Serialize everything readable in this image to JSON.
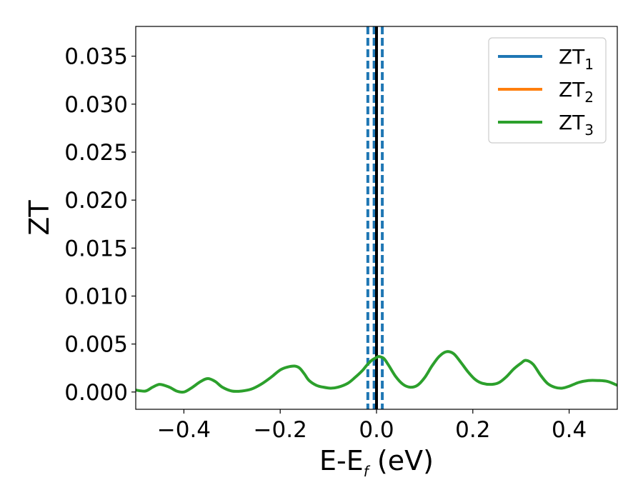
{
  "chart_data": {
    "type": "line",
    "xlabel": "E-E",
    "xlabel_sub": "f",
    "xlabel_unit": " (eV)",
    "ylabel": "ZT",
    "xlim": [
      -0.5,
      0.5
    ],
    "ylim": [
      -0.0018,
      0.0381
    ],
    "x_ticks": [
      -0.4,
      -0.2,
      0.0,
      0.2,
      0.4
    ],
    "x_tick_labels": [
      "−0.4",
      "−0.2",
      "0.0",
      "0.2",
      "0.4"
    ],
    "y_ticks": [
      0.0,
      0.005,
      0.01,
      0.015,
      0.02,
      0.025,
      0.03,
      0.035
    ],
    "y_tick_labels": [
      "0.000",
      "0.005",
      "0.010",
      "0.015",
      "0.020",
      "0.025",
      "0.030",
      "0.035"
    ],
    "legend_position": "top-right",
    "legend": [
      {
        "label": "ZT",
        "sub": "1",
        "color": "#1f77b4"
      },
      {
        "label": "ZT",
        "sub": "2",
        "color": "#ff7f0e"
      },
      {
        "label": "ZT",
        "sub": "3",
        "color": "#2ca02c"
      }
    ],
    "series": [
      {
        "color": "#2ca02c",
        "x": [
          -0.5,
          -0.48,
          -0.465,
          -0.45,
          -0.43,
          -0.415,
          -0.4,
          -0.385,
          -0.365,
          -0.35,
          -0.335,
          -0.32,
          -0.3,
          -0.28,
          -0.26,
          -0.24,
          -0.22,
          -0.2,
          -0.185,
          -0.17,
          -0.16,
          -0.15,
          -0.14,
          -0.125,
          -0.11,
          -0.095,
          -0.08,
          -0.06,
          -0.045,
          -0.03,
          -0.02,
          -0.01,
          0.0,
          0.005,
          0.015,
          0.025,
          0.04,
          0.055,
          0.07,
          0.085,
          0.1,
          0.115,
          0.13,
          0.145,
          0.16,
          0.175,
          0.19,
          0.205,
          0.22,
          0.24,
          0.255,
          0.27,
          0.285,
          0.3,
          0.31,
          0.325,
          0.34,
          0.355,
          0.37,
          0.385,
          0.4,
          0.42,
          0.44,
          0.46,
          0.48,
          0.5
        ],
        "y": [
          0.0002,
          0.0001,
          0.0005,
          0.0008,
          0.0005,
          0.0001,
          0.0,
          0.0004,
          0.0011,
          0.0014,
          0.0011,
          0.0005,
          0.0001,
          0.0001,
          0.0003,
          0.0008,
          0.0015,
          0.0023,
          0.0026,
          0.0027,
          0.0025,
          0.0019,
          0.0012,
          0.0007,
          0.0005,
          0.0004,
          0.0005,
          0.0009,
          0.0015,
          0.0022,
          0.0028,
          0.0033,
          0.0036,
          0.0037,
          0.0035,
          0.0028,
          0.0016,
          0.0008,
          0.0005,
          0.0007,
          0.0015,
          0.0027,
          0.0037,
          0.0042,
          0.004,
          0.0031,
          0.0021,
          0.0013,
          0.0009,
          0.0008,
          0.001,
          0.0016,
          0.0024,
          0.003,
          0.0033,
          0.0029,
          0.0018,
          0.0009,
          0.0005,
          0.0004,
          0.0006,
          0.001,
          0.0012,
          0.0012,
          0.0011,
          0.0007
        ]
      }
    ],
    "vlines": [
      {
        "x": -0.018,
        "style": "dashed",
        "color": "#1f77b4"
      },
      {
        "x": 0.012,
        "style": "dashed",
        "color": "#1f77b4"
      },
      {
        "x": -0.005,
        "style": "dashed",
        "color": "#1f77b4"
      },
      {
        "x": 0.0,
        "style": "solid",
        "color": "#000000"
      }
    ]
  }
}
